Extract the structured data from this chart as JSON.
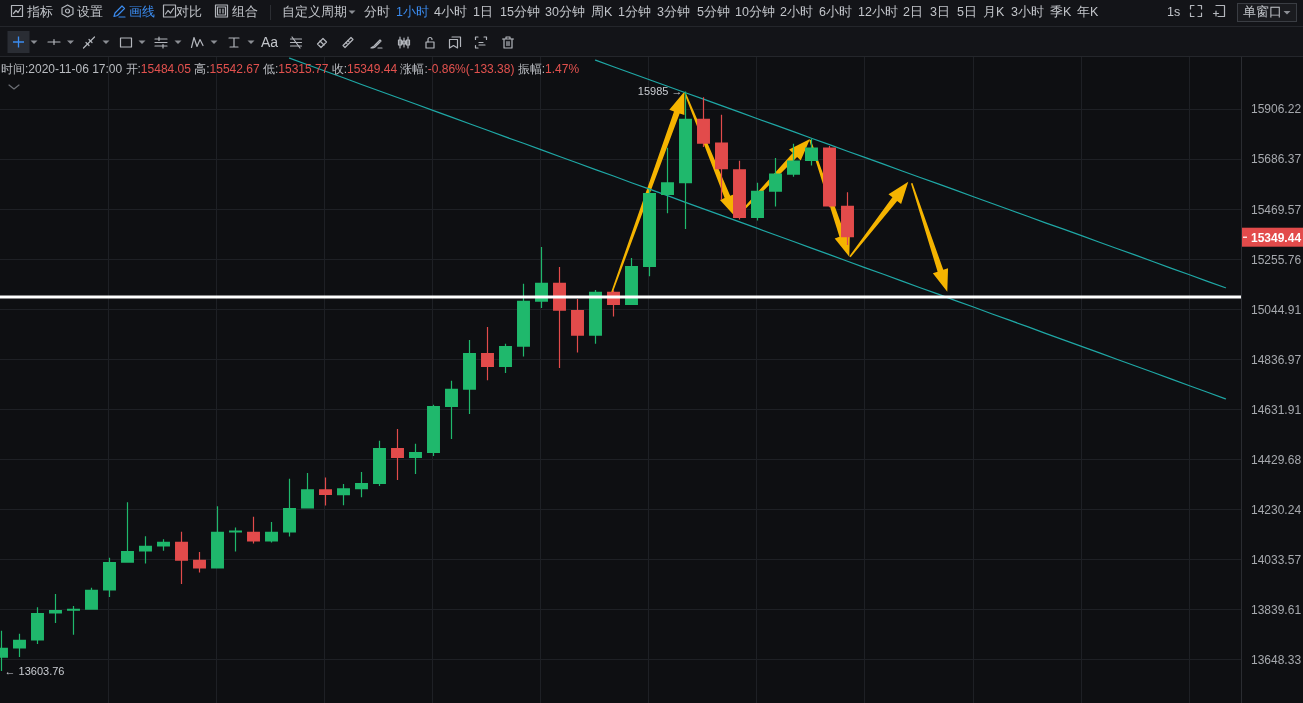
{
  "chart_data": {
    "type": "candlestick",
    "title": "时间:2020-11-06 17:00 开:15484.05 高:15542.67 低:15315.77 收:15349.44 涨幅:-0.86%(-133.38) 振幅:1.47%",
    "categories": [
      null,
      null,
      null,
      null,
      null,
      null,
      null,
      null,
      null,
      null,
      null,
      null,
      null,
      null,
      null,
      null,
      null,
      null,
      null,
      null,
      null,
      null,
      null,
      null,
      null,
      null,
      null,
      null,
      null,
      null,
      null,
      null,
      null,
      null,
      null,
      null,
      null,
      null,
      null,
      null,
      null,
      null,
      null,
      null,
      null,
      null,
      null,
      null,
      null,
      null,
      null,
      null,
      null,
      null,
      null,
      null,
      null,
      null,
      null,
      null,
      null,
      null,
      null,
      null,
      null,
      null,
      null,
      null,
      null
    ],
    "ohlc": [
      [
        13654,
        13757,
        13603.76,
        13692
      ],
      [
        13689,
        13745,
        13657,
        13722
      ],
      [
        13720,
        13847,
        13706,
        13825
      ],
      [
        13823,
        13898,
        13787,
        13837
      ],
      [
        13834,
        13852,
        13742,
        13841
      ],
      [
        13838,
        13923,
        13838,
        13915
      ],
      [
        13912,
        14039,
        13887,
        14023
      ],
      [
        14020,
        14258,
        14020,
        14066
      ],
      [
        14064,
        14124,
        14017,
        14086
      ],
      [
        14083,
        14112,
        14067,
        14102
      ],
      [
        14102,
        14141,
        13937,
        14028
      ],
      [
        14031,
        14062,
        13982,
        13997
      ],
      [
        13997,
        14242,
        13997,
        14141
      ],
      [
        14138,
        14158,
        14064,
        14146
      ],
      [
        14141,
        14200,
        14095,
        14103
      ],
      [
        14103,
        14180,
        14099,
        14141
      ],
      [
        14138,
        14351,
        14123,
        14235
      ],
      [
        14233,
        14374,
        14233,
        14310
      ],
      [
        14310,
        14356,
        14245,
        14287
      ],
      [
        14286,
        14330,
        14246,
        14314
      ],
      [
        14310,
        14378,
        14278,
        14334
      ],
      [
        14330,
        14504,
        14322,
        14475
      ],
      [
        14475,
        14552,
        14346,
        14435
      ],
      [
        14435,
        14492,
        14370,
        14459
      ],
      [
        14455,
        14650,
        14443,
        14645
      ],
      [
        14641,
        14748,
        14511,
        14715
      ],
      [
        14711,
        14917,
        14612,
        14863
      ],
      [
        14863,
        14971,
        14750,
        14805
      ],
      [
        14805,
        14901,
        14780,
        14892
      ],
      [
        14888,
        15152,
        14848,
        15080
      ],
      [
        15076,
        15308,
        15050,
        15156
      ],
      [
        15156,
        15223,
        14801,
        15038
      ],
      [
        15042,
        15088,
        14865,
        14934
      ],
      [
        14934,
        15126,
        14901,
        15118
      ],
      [
        15118,
        15125,
        15014,
        15063
      ],
      [
        15063,
        15261,
        15063,
        15227
      ],
      [
        15223,
        15560,
        15184,
        15540
      ],
      [
        15531,
        15736,
        15452,
        15586
      ],
      [
        15582,
        15985,
        15385,
        15864
      ],
      [
        15864,
        15959,
        15740,
        15754
      ],
      [
        15759,
        15882,
        15510,
        15643
      ],
      [
        15643,
        15680,
        15425,
        15432
      ],
      [
        15432,
        15584,
        15421,
        15549
      ],
      [
        15545,
        15692,
        15481,
        15624
      ],
      [
        15619,
        15754,
        15610,
        15681
      ],
      [
        15678,
        15776,
        15659,
        15738
      ],
      [
        15738,
        15744,
        15478,
        15481
      ],
      [
        15484.05,
        15542.67,
        15315.77,
        15349.44
      ],
      null,
      null,
      null,
      null,
      null,
      null,
      null,
      null,
      null,
      null,
      null,
      null,
      null,
      null,
      null,
      null,
      null,
      null,
      null,
      null,
      null
    ],
    "colors": [
      "#1fb86c",
      "#1fb86c",
      "#1fb86c",
      "#1fb86c",
      "#1fb86c",
      "#1fb86c",
      "#1fb86c",
      "#1fb86c",
      "#1fb86c",
      "#1fb86c",
      "#e24b4b",
      "#e24b4b",
      "#1fb86c",
      "#1fb86c",
      "#e24b4b",
      "#1fb86c",
      "#1fb86c",
      "#1fb86c",
      "#e24b4b",
      "#1fb86c",
      "#1fb86c",
      "#1fb86c",
      "#e24b4b",
      "#1fb86c",
      "#1fb86c",
      "#1fb86c",
      "#1fb86c",
      "#e24b4b",
      "#1fb86c",
      "#1fb86c",
      "#1fb86c",
      "#e24b4b",
      "#e24b4b",
      "#1fb86c",
      "#e24b4b",
      "#1fb86c",
      "#1fb86c",
      "#1fb86c",
      "#1fb86c",
      "#e24b4b",
      "#e24b4b",
      "#e24b4b",
      "#1fb86c",
      "#1fb86c",
      "#1fb86c",
      "#1fb86c",
      "#e24b4b",
      "#e24b4b",
      null,
      null,
      null,
      null,
      null,
      null,
      null,
      null,
      null,
      null,
      null,
      null,
      null,
      null,
      null,
      null,
      null,
      null,
      null,
      null,
      null
    ],
    "series": [
      {
        "type": "line",
        "color": "#1fa8a6",
        "values": [
          null,
          null,
          null,
          null,
          null,
          null,
          null,
          null,
          null,
          null,
          null,
          null,
          null,
          null,
          null,
          null,
          16134,
          16104,
          16075,
          16046,
          16016,
          15987,
          15958,
          15929,
          15900,
          15871,
          15842,
          15813,
          15784,
          15756,
          15727,
          15698,
          15670,
          15641,
          15613,
          15584,
          15556,
          15528,
          15499,
          15471,
          15443,
          15415,
          15387,
          15359,
          15331,
          15303,
          15275,
          15247,
          15219,
          15192,
          15164,
          15136,
          15109,
          15081,
          15054,
          15026,
          14999,
          14972,
          14944,
          14917,
          14890,
          14863,
          14836,
          14809,
          14782,
          14755,
          14728,
          14701,
          14674
        ]
      },
      {
        "type": "line",
        "color": "#1fa8a6",
        "values": [
          null,
          null,
          null,
          null,
          null,
          null,
          null,
          null,
          null,
          null,
          null,
          null,
          null,
          null,
          null,
          null,
          null,
          null,
          null,
          null,
          null,
          null,
          null,
          null,
          null,
          null,
          null,
          null,
          null,
          null,
          null,
          null,
          null,
          16125,
          16095,
          16066,
          16037,
          16008,
          15979,
          15951,
          15922,
          15893,
          15864,
          15836,
          15807,
          15778,
          15750,
          15721,
          15693,
          15665,
          15636,
          15608,
          15580,
          15552,
          15523,
          15495,
          15467,
          15439,
          15411,
          15384,
          15356,
          15328,
          15300,
          15273,
          15245,
          15217,
          15190,
          15162,
          15135
        ]
      }
    ],
    "ylim": [
      13483,
      16139
    ],
    "yticks": [
      13648.33,
      13839.61,
      14033.57,
      14230.24,
      14429.68,
      14631.91,
      14836.97,
      15044.91,
      15255.76,
      15469.57,
      15686.37,
      15906.22
    ],
    "log": true,
    "grid": true,
    "tick_labels": "y",
    "ref_lines": [
      {
        "axis": "y",
        "value": 15096,
        "color": "#ffffff"
      }
    ],
    "annotations": [
      "指标",
      "设置",
      "画线",
      "对比",
      "组合",
      "自定义周期",
      "分时",
      "1小时",
      "4小时",
      "1日",
      "15分钟",
      "30分钟",
      "周K",
      "1分钟",
      "3分钟",
      "5分钟",
      "10分钟",
      "2小时",
      "6小时",
      "12小时",
      "2日",
      "3日",
      "5日",
      "月K",
      "3小时",
      "季K",
      "年K",
      "1s",
      "单窗口",
      "Aa",
      "15985 →",
      "← 13603.76",
      "15349.44"
    ]
  }
}
